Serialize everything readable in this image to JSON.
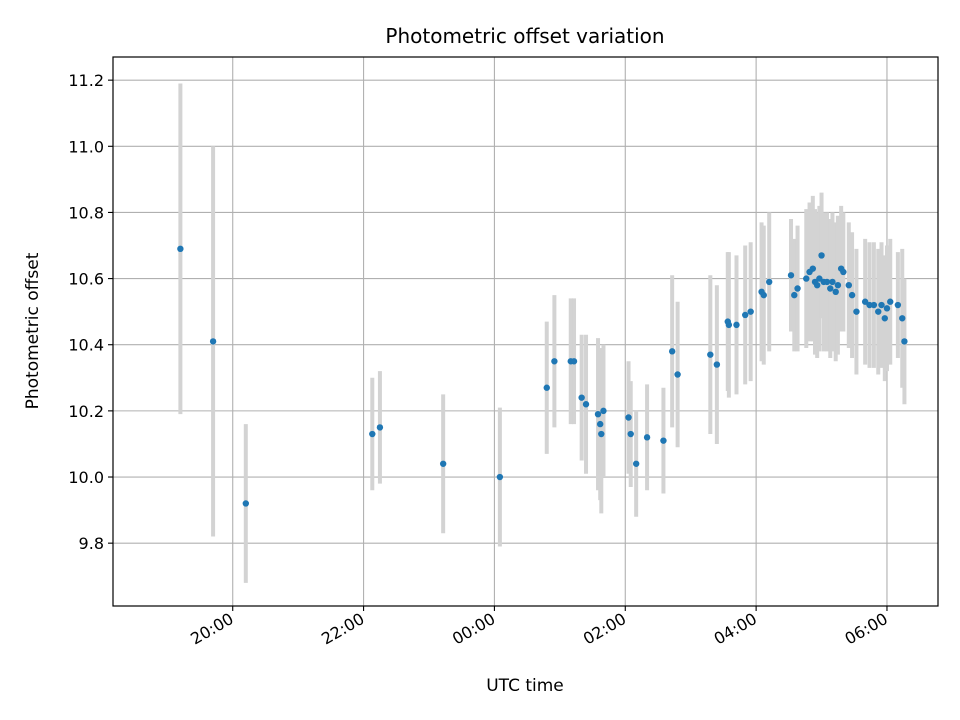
{
  "chart_data": {
    "type": "scatter",
    "title": "Photometric offset variation",
    "xlabel": "UTC time",
    "ylabel": "Photometric offset",
    "x_tick_labels": [
      "20:00",
      "22:00",
      "00:00",
      "02:00",
      "04:00",
      "06:00"
    ],
    "x_tick_hours": [
      20,
      22,
      24,
      26,
      28,
      30
    ],
    "y_ticks": [
      9.8,
      10.0,
      10.2,
      10.4,
      10.6,
      10.8,
      11.0,
      11.2
    ],
    "y_tick_labels": [
      "9.8",
      "10.0",
      "10.2",
      "10.4",
      "10.6",
      "10.8",
      "11.0",
      "11.2"
    ],
    "xlim_hours": [
      18.17,
      30.78
    ],
    "ylim": [
      9.61,
      11.27
    ],
    "grid": true,
    "colors": {
      "point": "#1f77b4",
      "error_bar": "#d3d3d3",
      "grid": "#b0b0b0"
    },
    "series": [
      {
        "x": [
          "19:12",
          "19:42",
          "20:12",
          "22:08",
          "22:15",
          "23:13",
          "00:05",
          "00:48",
          "00:55",
          "01:10",
          "01:13",
          "01:20",
          "01:24",
          "01:35",
          "01:37",
          "01:38",
          "01:40",
          "02:03",
          "02:05",
          "02:10",
          "02:20",
          "02:35",
          "02:43",
          "02:48",
          "03:18",
          "03:24",
          "03:34",
          "03:35",
          "03:42",
          "03:50",
          "03:55",
          "04:05",
          "04:07",
          "04:12",
          "04:32",
          "04:35",
          "04:38",
          "04:46",
          "04:49",
          "04:52",
          "04:54",
          "04:56",
          "04:58",
          "05:00",
          "05:02",
          "05:05",
          "05:08",
          "05:10",
          "05:13",
          "05:15",
          "05:18",
          "05:20",
          "05:25",
          "05:28",
          "05:32",
          "05:40",
          "05:44",
          "05:48",
          "05:52",
          "05:55",
          "05:58",
          "06:00",
          "06:03",
          "06:10",
          "06:14",
          "06:16"
        ],
        "y": [
          10.69,
          10.41,
          9.92,
          10.13,
          10.15,
          10.04,
          10.0,
          10.27,
          10.35,
          10.35,
          10.35,
          10.24,
          10.22,
          10.19,
          10.16,
          10.13,
          10.2,
          10.18,
          10.13,
          10.04,
          10.12,
          10.11,
          10.38,
          10.31,
          10.37,
          10.34,
          10.47,
          10.46,
          10.46,
          10.49,
          10.5,
          10.56,
          10.55,
          10.59,
          10.61,
          10.55,
          10.57,
          10.6,
          10.62,
          10.63,
          10.59,
          10.58,
          10.6,
          10.67,
          10.59,
          10.59,
          10.57,
          10.59,
          10.56,
          10.58,
          10.63,
          10.62,
          10.58,
          10.55,
          10.5,
          10.53,
          10.52,
          10.52,
          10.5,
          10.52,
          10.48,
          10.51,
          10.53,
          10.52,
          10.48,
          10.41
        ],
        "err": [
          0.5,
          0.59,
          0.24,
          0.17,
          0.17,
          0.21,
          0.21,
          0.2,
          0.2,
          0.19,
          0.19,
          0.19,
          0.21,
          0.23,
          0.23,
          0.24,
          0.2,
          0.17,
          0.16,
          0.16,
          0.16,
          0.16,
          0.23,
          0.22,
          0.24,
          0.24,
          0.21,
          0.22,
          0.21,
          0.21,
          0.21,
          0.21,
          0.21,
          0.21,
          0.17,
          0.17,
          0.19,
          0.21,
          0.21,
          0.22,
          0.22,
          0.22,
          0.22,
          0.19,
          0.21,
          0.21,
          0.21,
          0.21,
          0.21,
          0.21,
          0.19,
          0.18,
          0.19,
          0.19,
          0.19,
          0.19,
          0.19,
          0.19,
          0.19,
          0.19,
          0.19,
          0.19,
          0.19,
          0.16,
          0.21,
          0.19
        ]
      }
    ]
  }
}
